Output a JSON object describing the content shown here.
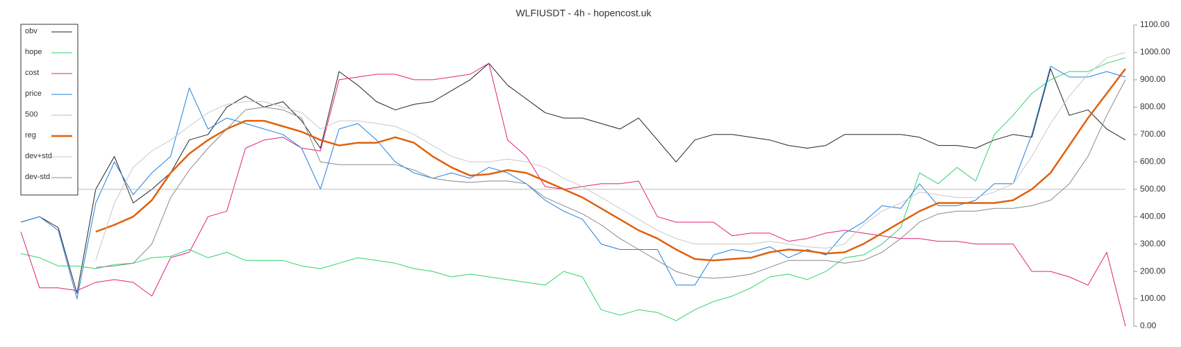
{
  "chart_data": {
    "type": "line",
    "title": "WLFIUSDT - 4h - hopencost.uk",
    "legend": "upper left",
    "ylim": [
      0,
      1100
    ],
    "yticks": [
      {
        "value": 0,
        "label": "0.00"
      },
      {
        "value": 100,
        "label": "100.00"
      },
      {
        "value": 200,
        "label": "200.00"
      },
      {
        "value": 300,
        "label": "300.00"
      },
      {
        "value": 400,
        "label": "400.00"
      },
      {
        "value": 500,
        "label": "500.00"
      },
      {
        "value": 600,
        "label": "600.00"
      },
      {
        "value": 700,
        "label": "700.00"
      },
      {
        "value": 800,
        "label": "800.00"
      },
      {
        "value": 900,
        "label": "900.00"
      },
      {
        "value": 1000,
        "label": "1000.00"
      },
      {
        "value": 1100,
        "label": "1100.00"
      }
    ],
    "series": [
      {
        "name": "obv",
        "color": "#222222",
        "width": 1,
        "values": [
          380,
          400,
          360,
          120,
          500,
          620,
          450,
          500,
          560,
          680,
          700,
          800,
          840,
          800,
          820,
          750,
          650,
          930,
          880,
          820,
          790,
          810,
          820,
          860,
          900,
          960,
          880,
          830,
          780,
          760,
          760,
          740,
          720,
          760,
          680,
          600,
          680,
          700,
          700,
          690,
          680,
          660,
          650,
          660,
          700,
          700,
          700,
          700,
          690,
          660,
          660,
          650,
          680,
          700,
          690,
          940,
          770,
          790,
          720,
          680
        ]
      },
      {
        "name": "hope",
        "color": "#2fd36a",
        "width": 1,
        "values": [
          265,
          250,
          220,
          220,
          210,
          225,
          230,
          250,
          255,
          280,
          250,
          270,
          240,
          240,
          240,
          220,
          210,
          230,
          250,
          240,
          230,
          210,
          200,
          180,
          190,
          180,
          170,
          160,
          150,
          200,
          180,
          60,
          40,
          60,
          50,
          20,
          60,
          90,
          110,
          140,
          180,
          190,
          170,
          200,
          250,
          260,
          300,
          360,
          560,
          520,
          580,
          530,
          700,
          770,
          850,
          900,
          930,
          930,
          960,
          980
        ]
      },
      {
        "name": "cost",
        "color": "#e0207a",
        "width": 1,
        "values": [
          345,
          140,
          140,
          130,
          160,
          170,
          160,
          110,
          250,
          270,
          400,
          420,
          650,
          680,
          690,
          650,
          640,
          900,
          910,
          920,
          920,
          900,
          900,
          910,
          920,
          960,
          680,
          620,
          510,
          500,
          510,
          520,
          520,
          530,
          400,
          380,
          380,
          380,
          330,
          340,
          340,
          310,
          320,
          340,
          350,
          340,
          330,
          320,
          320,
          310,
          310,
          300,
          300,
          300,
          200,
          200,
          180,
          150,
          270,
          0
        ]
      },
      {
        "name": "price",
        "color": "#1f7fe0",
        "width": 1,
        "values": [
          380,
          400,
          350,
          100,
          450,
          600,
          480,
          560,
          620,
          870,
          720,
          760,
          740,
          720,
          700,
          650,
          500,
          720,
          740,
          680,
          600,
          560,
          540,
          560,
          540,
          580,
          560,
          520,
          460,
          420,
          390,
          300,
          280,
          280,
          280,
          150,
          150,
          260,
          280,
          270,
          290,
          250,
          280,
          260,
          340,
          380,
          440,
          430,
          520,
          440,
          440,
          460,
          520,
          520,
          700,
          950,
          910,
          910,
          930,
          910
        ]
      },
      {
        "name": "500",
        "color": "#bbbbbb",
        "width": 1,
        "values": [
          500,
          500,
          500,
          500,
          500,
          500,
          500,
          500,
          500,
          500,
          500,
          500,
          500,
          500,
          500,
          500,
          500,
          500,
          500,
          500,
          500,
          500,
          500,
          500,
          500,
          500,
          500,
          500,
          500,
          500,
          500,
          500,
          500,
          500,
          500,
          500,
          500,
          500,
          500,
          500,
          500,
          500,
          500,
          500,
          500,
          500,
          500,
          500,
          500,
          500,
          500,
          500,
          500,
          500,
          500,
          500,
          500,
          500,
          500,
          500
        ]
      },
      {
        "name": "reg",
        "color": "#e0600a",
        "width": 2.5,
        "values": [
          null,
          null,
          null,
          null,
          345,
          370,
          400,
          460,
          560,
          630,
          680,
          720,
          750,
          750,
          730,
          710,
          680,
          660,
          670,
          670,
          690,
          670,
          620,
          580,
          550,
          555,
          570,
          560,
          530,
          500,
          470,
          430,
          390,
          350,
          320,
          280,
          245,
          240,
          245,
          250,
          270,
          280,
          275,
          265,
          270,
          300,
          340,
          380,
          420,
          450,
          450,
          450,
          450,
          460,
          500,
          560,
          660,
          760,
          850,
          940
        ]
      },
      {
        "name": "dev+std",
        "color": "#c8c8c8",
        "width": 1,
        "values": [
          null,
          null,
          null,
          null,
          240,
          450,
          580,
          640,
          680,
          730,
          780,
          810,
          820,
          820,
          800,
          780,
          720,
          750,
          750,
          740,
          730,
          700,
          660,
          620,
          600,
          600,
          610,
          600,
          580,
          540,
          510,
          470,
          430,
          390,
          350,
          320,
          300,
          300,
          300,
          300,
          310,
          300,
          290,
          285,
          300,
          370,
          420,
          450,
          490,
          480,
          470,
          470,
          490,
          520,
          620,
          740,
          840,
          920,
          980,
          1000
        ]
      },
      {
        "name": "dev-std",
        "color": "#888888",
        "width": 1,
        "values": [
          null,
          null,
          null,
          null,
          215,
          220,
          230,
          300,
          470,
          570,
          650,
          720,
          790,
          800,
          790,
          760,
          600,
          590,
          590,
          590,
          590,
          570,
          540,
          530,
          525,
          530,
          530,
          520,
          470,
          440,
          410,
          370,
          320,
          280,
          240,
          200,
          180,
          175,
          180,
          190,
          215,
          240,
          240,
          240,
          230,
          240,
          270,
          320,
          380,
          410,
          420,
          420,
          430,
          430,
          440,
          460,
          520,
          620,
          770,
          900
        ]
      }
    ]
  }
}
